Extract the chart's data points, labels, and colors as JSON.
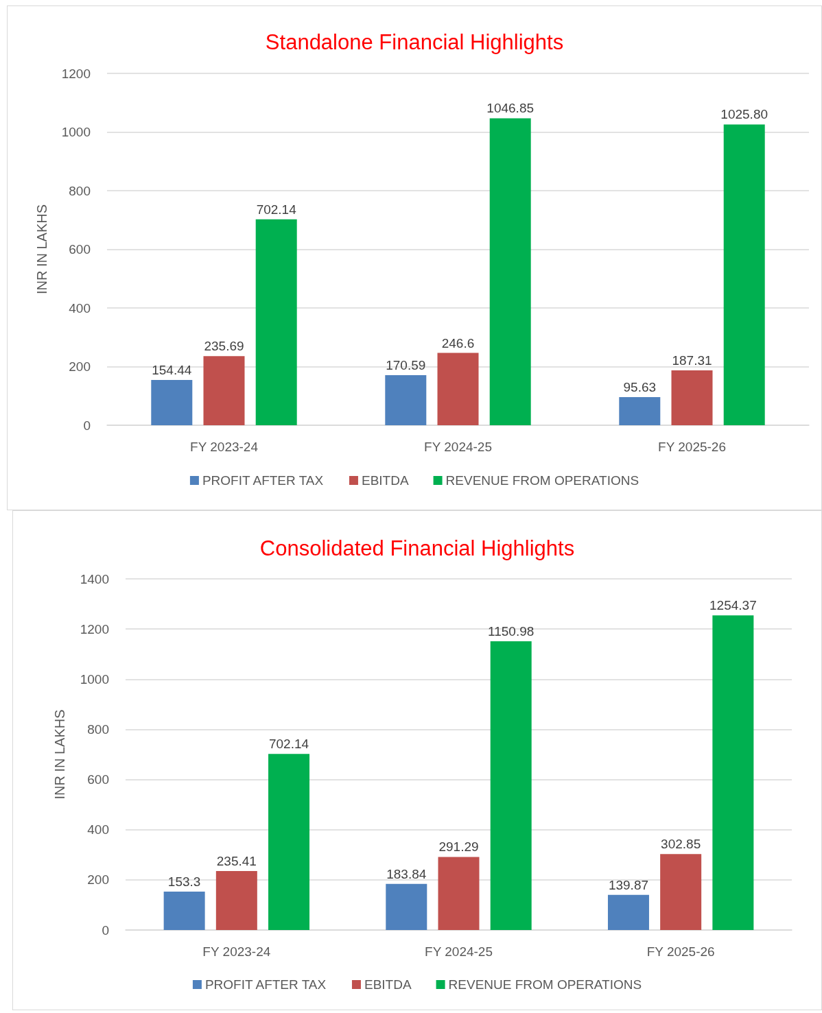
{
  "chart_data": [
    {
      "type": "bar",
      "title": "Standalone Financial Highlights",
      "ylabel": "INR IN LAKHS",
      "categories": [
        "FY 2023-24",
        "FY 2024-25",
        "FY 2025-26"
      ],
      "series": [
        {
          "name": "PROFIT AFTER TAX",
          "color": "#4f81bd",
          "values": [
            154.44,
            170.59,
            95.63
          ],
          "value_labels": [
            "154.44",
            "170.59",
            "95.63"
          ]
        },
        {
          "name": "EBITDA",
          "color": "#c0504d",
          "values": [
            235.69,
            246.6,
            187.31
          ],
          "value_labels": [
            "235.69",
            "246.6",
            "187.31"
          ]
        },
        {
          "name": "REVENUE FROM OPERATIONS",
          "color": "#00b050",
          "values": [
            702.14,
            1046.85,
            1025.8
          ],
          "value_labels": [
            "702.14",
            "1046.85",
            "1025.80"
          ]
        }
      ],
      "ylim": [
        0,
        1200
      ],
      "yticks": [
        0,
        200,
        400,
        600,
        800,
        1000,
        1200
      ],
      "grid": "y",
      "legend": "bottom"
    },
    {
      "type": "bar",
      "title": "Consolidated Financial Highlights",
      "ylabel": "INR IN LAKHS",
      "categories": [
        "FY 2023-24",
        "FY 2024-25",
        "FY 2025-26"
      ],
      "series": [
        {
          "name": "PROFIT AFTER TAX",
          "color": "#4f81bd",
          "values": [
            153.3,
            183.84,
            139.87
          ],
          "value_labels": [
            "153.3",
            "183.84",
            "139.87"
          ]
        },
        {
          "name": "EBITDA",
          "color": "#c0504d",
          "values": [
            235.41,
            291.29,
            302.85
          ],
          "value_labels": [
            "235.41",
            "291.29",
            "302.85"
          ]
        },
        {
          "name": "REVENUE FROM OPERATIONS",
          "color": "#00b050",
          "values": [
            702.14,
            1150.98,
            1254.37
          ],
          "value_labels": [
            "702.14",
            "1150.98",
            "1254.37"
          ]
        }
      ],
      "ylim": [
        0,
        1400
      ],
      "yticks": [
        0,
        200,
        400,
        600,
        800,
        1000,
        1200,
        1400
      ],
      "grid": "y",
      "legend": "bottom"
    }
  ]
}
